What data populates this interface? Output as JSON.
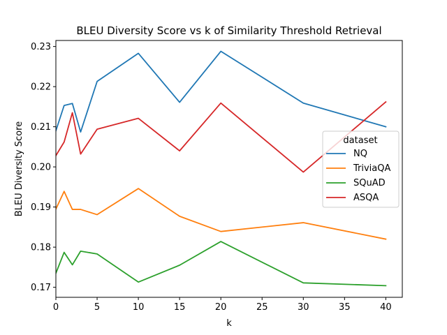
{
  "chart_data": {
    "type": "line",
    "title": "BLEU Diversity Score vs k of Similarity Threshold Retrieval",
    "xlabel": "k",
    "ylabel": "BLEU Diversity Score",
    "xlim": [
      0,
      42
    ],
    "ylim": [
      0.1675,
      0.2315
    ],
    "xticks": [
      0,
      5,
      10,
      15,
      20,
      25,
      30,
      35,
      40
    ],
    "xtick_labels": [
      "0",
      "5",
      "10",
      "15",
      "20",
      "25",
      "30",
      "35",
      "40"
    ],
    "yticks": [
      0.17,
      0.18,
      0.19,
      0.2,
      0.21,
      0.22,
      0.23
    ],
    "ytick_labels": [
      "0.17",
      "0.18",
      "0.19",
      "0.20",
      "0.21",
      "0.22",
      "0.23"
    ],
    "grid": false,
    "legend": {
      "title": "dataset",
      "placement": "center-right"
    },
    "x": [
      0,
      1,
      2,
      3,
      5,
      10,
      15,
      20,
      30,
      40
    ],
    "series": [
      {
        "name": "NQ",
        "color": "#1f77b4",
        "values": [
          0.209,
          0.2153,
          0.2158,
          0.2087,
          0.2213,
          0.2283,
          0.2161,
          0.2288,
          0.2159,
          0.21
        ]
      },
      {
        "name": "TriviaQA",
        "color": "#ff7f0e",
        "values": [
          0.1895,
          0.1939,
          0.1894,
          0.1894,
          0.1881,
          0.1946,
          0.1877,
          0.1839,
          0.1861,
          0.182
        ]
      },
      {
        "name": "SQuAD",
        "color": "#2ca02c",
        "values": [
          0.1735,
          0.1787,
          0.1756,
          0.179,
          0.1783,
          0.1713,
          0.1755,
          0.1814,
          0.1711,
          0.1704
        ]
      },
      {
        "name": "ASQA",
        "color": "#d62728",
        "values": [
          0.2028,
          0.2062,
          0.2135,
          0.2032,
          0.2094,
          0.2121,
          0.204,
          0.2159,
          0.1987,
          0.2162
        ]
      }
    ]
  }
}
